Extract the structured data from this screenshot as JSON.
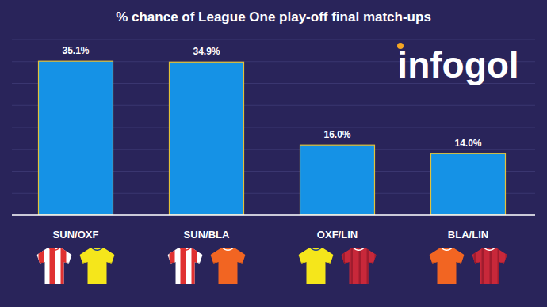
{
  "chart_data": {
    "type": "bar",
    "title": "% chance of League One play-off final match-ups",
    "categories": [
      "SUN/OXF",
      "SUN/BLA",
      "OXF/LIN",
      "BLA/LIN"
    ],
    "values": [
      35.1,
      34.9,
      16.0,
      14.0
    ],
    "value_labels": [
      "35.1%",
      "34.9%",
      "16.0%",
      "14.0%"
    ],
    "color": "#1592e6",
    "ylim": [
      0,
      40
    ],
    "yticks": [
      0,
      5,
      10,
      15,
      20,
      25,
      30,
      35,
      40
    ],
    "grid": true,
    "data_labels": true,
    "tick_labels": "x",
    "annotations": [
      "infogol"
    ]
  }
}
